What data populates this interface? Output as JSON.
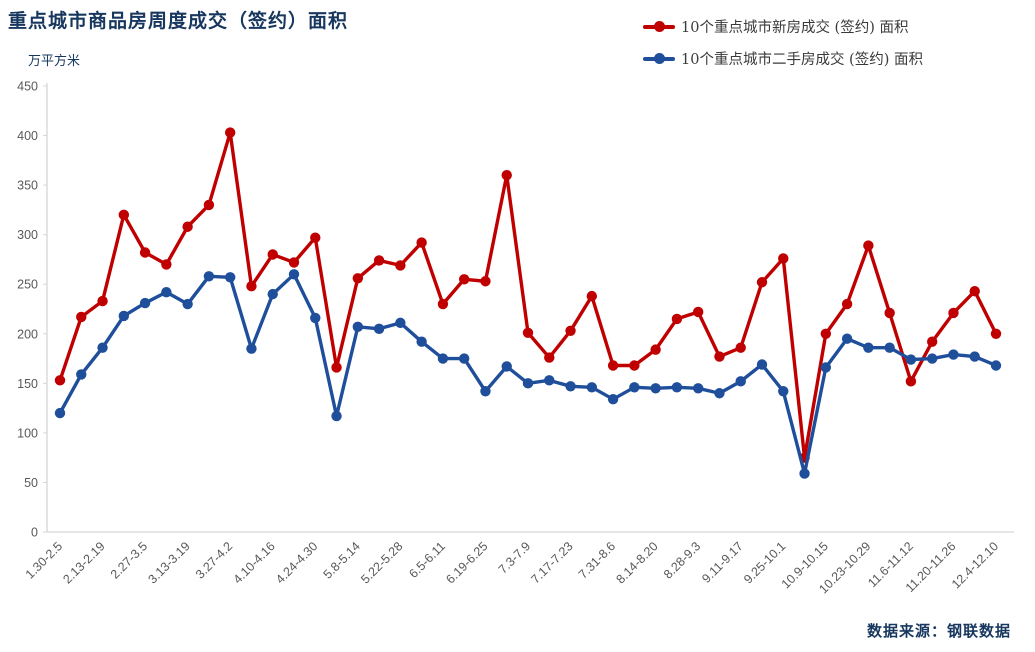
{
  "title": "重点城市商品房周度成交（签约）面积",
  "unit_label": "万平方米",
  "source": "数据来源：钢联数据",
  "legend": [
    {
      "label": "10个重点城市新房成交 (签约) 面积",
      "color": "#c00000"
    },
    {
      "label": "10个重点城市二手房成交 (签约) 面积",
      "color": "#1f4e9b"
    }
  ],
  "chart_data": {
    "type": "line",
    "title": "重点城市商品房周度成交（签约）面积",
    "ylabel": "万平方米",
    "ylim": [
      0,
      450
    ],
    "ytick_step": 50,
    "grid": false,
    "legend_position": "top-right",
    "x_label_every": 2,
    "x_tick_labels": [
      "1.30-2.5",
      "2.13-2.19",
      "2.27-3.5",
      "3.13-3.19",
      "3.27-4.2",
      "4.10-4.16",
      "4.24-4.30",
      "5.8-5.14",
      "5.22-5.28",
      "6.5-6.11",
      "6.19-6.25",
      "7.3-7.9",
      "7.17-7.23",
      "7.31-8.6",
      "8.14-8.20",
      "8.28-9.3",
      "9.11-9.17",
      "9.25-10.1",
      "10.9-10.15",
      "10.23-10.29",
      "11.6-11.12",
      "11.20-11.26",
      "12.4-12.10"
    ],
    "series": [
      {
        "name": "10个重点城市新房成交 (签约) 面积",
        "color": "#c00000",
        "values": [
          153,
          217,
          233,
          320,
          282,
          270,
          308,
          330,
          403,
          248,
          280,
          272,
          297,
          166,
          256,
          274,
          269,
          292,
          230,
          255,
          253,
          360,
          201,
          176,
          203,
          238,
          168,
          168,
          184,
          215,
          222,
          177,
          186,
          252,
          276,
          75,
          200,
          230,
          289,
          221,
          152,
          192,
          221,
          243,
          200
        ]
      },
      {
        "name": "10个重点城市二手房成交 (签约) 面积",
        "color": "#1f4e9b",
        "values": [
          120,
          159,
          186,
          218,
          231,
          242,
          230,
          258,
          257,
          185,
          240,
          260,
          216,
          117,
          207,
          205,
          211,
          192,
          175,
          175,
          142,
          167,
          150,
          153,
          147,
          146,
          134,
          146,
          145,
          146,
          145,
          140,
          152,
          169,
          142,
          59,
          166,
          195,
          186,
          186,
          174,
          175,
          179,
          177,
          168
        ]
      }
    ]
  }
}
